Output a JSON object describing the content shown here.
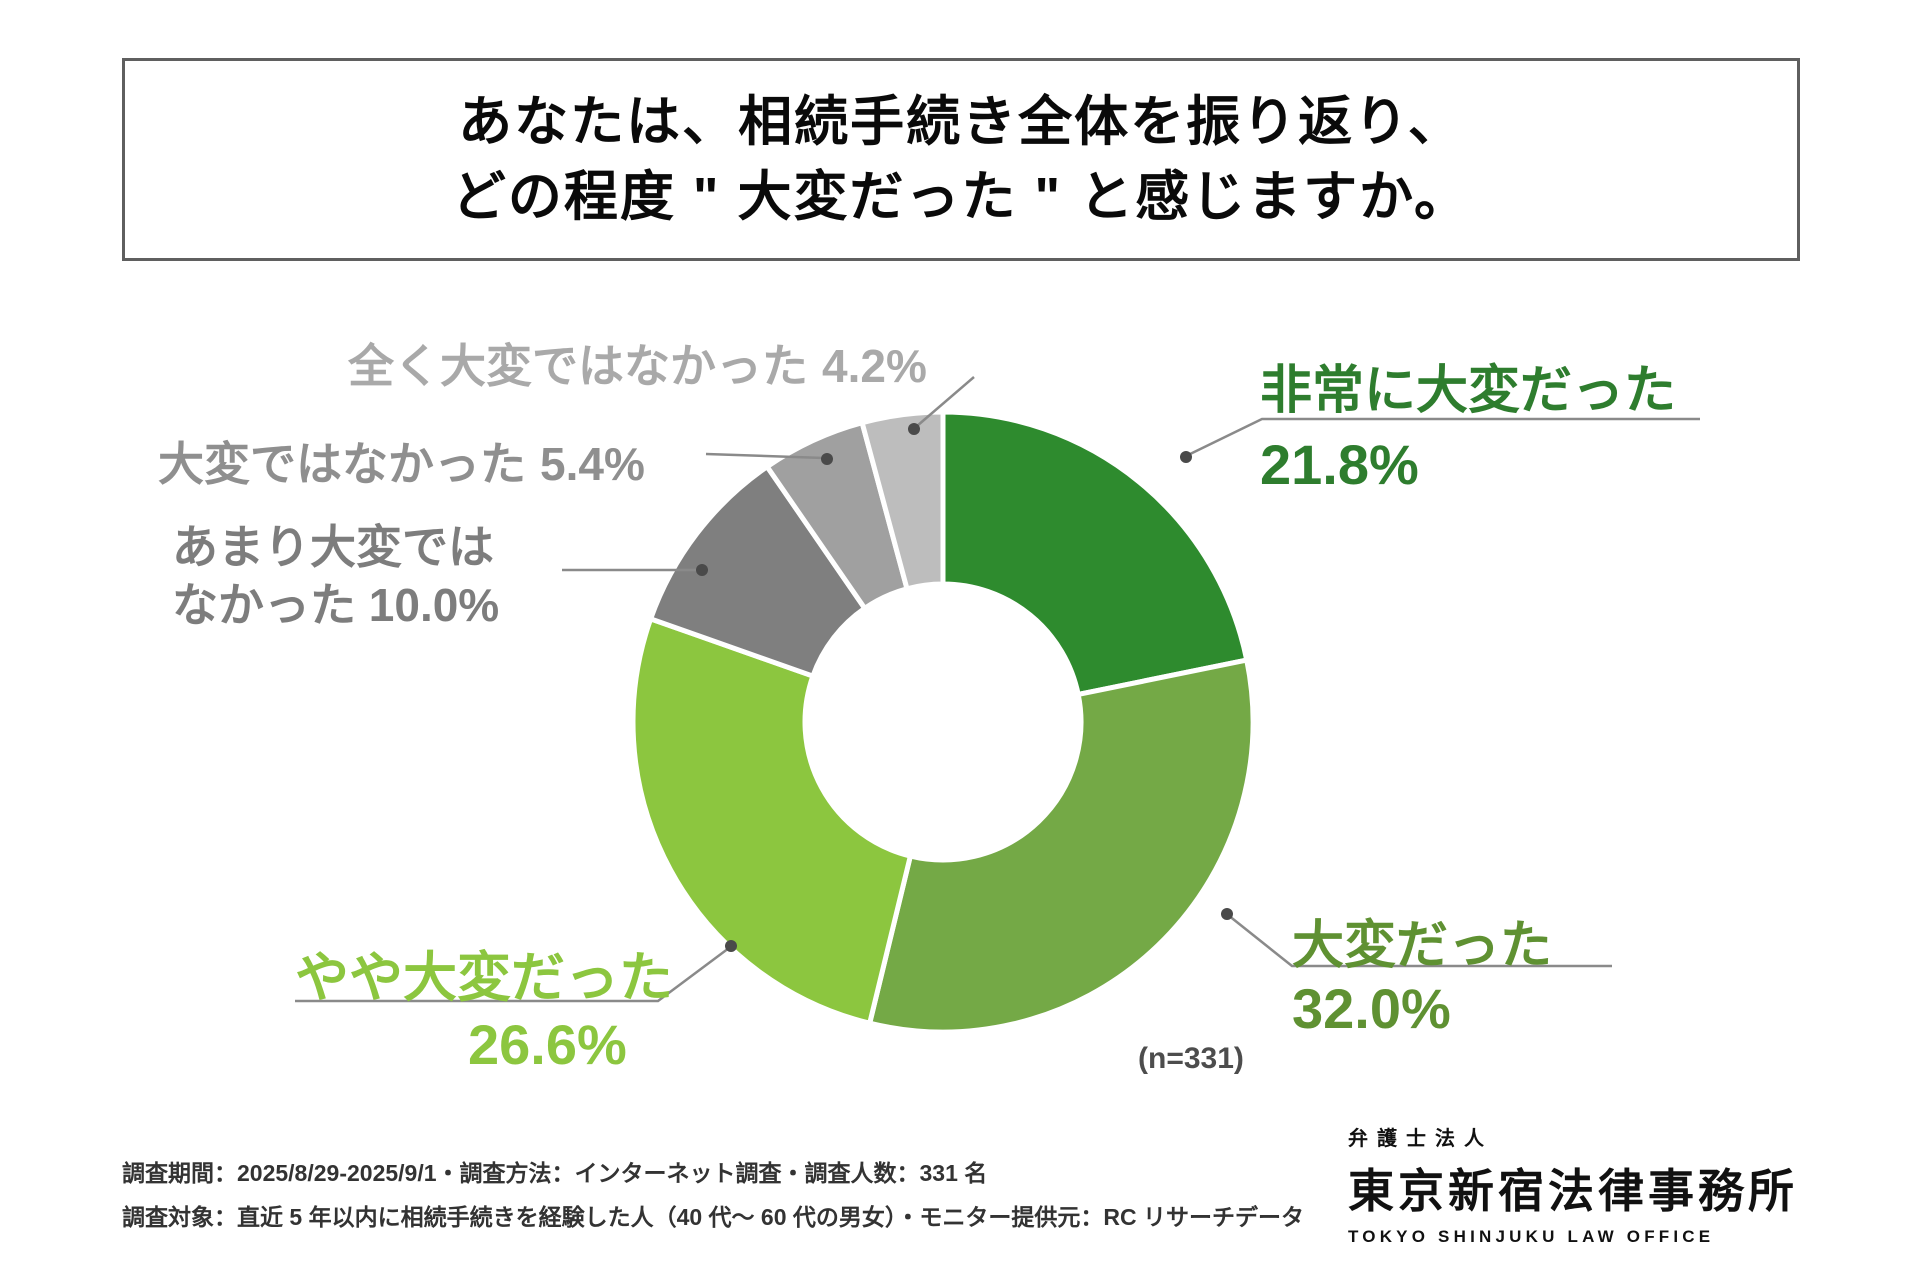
{
  "title": {
    "line1": "あなたは、相続手続き全体を振り返り、",
    "line2": "どの程度 \" 大変だった \" と感じますか。"
  },
  "chart_data": {
    "type": "pie",
    "subtype": "donut",
    "start_angle_deg": 0,
    "clockwise": true,
    "n_label": "(n=331)",
    "segments": [
      {
        "key": "very-hard",
        "label": "非常に大変だった",
        "value": 21.8,
        "pct": "21.8%",
        "color": "#2e8b2e",
        "label_color": "#2e7d2e"
      },
      {
        "key": "hard",
        "label": "大変だった",
        "value": 32.0,
        "pct": "32.0%",
        "color": "#74a946",
        "label_color": "#5f9132"
      },
      {
        "key": "somewhat-hard",
        "label": "やや大変だった",
        "value": 26.6,
        "pct": "26.6%",
        "color": "#8cc63f",
        "label_color": "#8cc63f"
      },
      {
        "key": "not-very-hard",
        "label": "あまり大変ではなかった",
        "value": 10.0,
        "pct": "10.0%",
        "color": "#7f7f7f",
        "label_color": "#7d7d7d",
        "label_line1": "あまり大変では",
        "label_line2": "なかった 10.0%"
      },
      {
        "key": "not-hard",
        "label": "大変ではなかった",
        "value": 5.4,
        "pct": "5.4%",
        "color": "#a0a0a0",
        "label_color": "#8f8f8f"
      },
      {
        "key": "not-hard-at-all",
        "label": "全く大変ではなかった",
        "value": 4.2,
        "pct": "4.2%",
        "color": "#bdbdbd",
        "label_color": "#a9a9a9"
      }
    ]
  },
  "footer": {
    "line1": "調査期間：2025/8/29-2025/9/1・調査方法：インターネット調査・調査人数：331 名",
    "line2": "調査対象：直近 5 年以内に相続手続きを経験した人（40 代〜 60 代の男女）・モニター提供元：RC リサーチデータ"
  },
  "logo": {
    "top": "弁護士法人",
    "name": "東京新宿法律事務所",
    "en": "TOKYO SHINJUKU LAW OFFICE"
  }
}
